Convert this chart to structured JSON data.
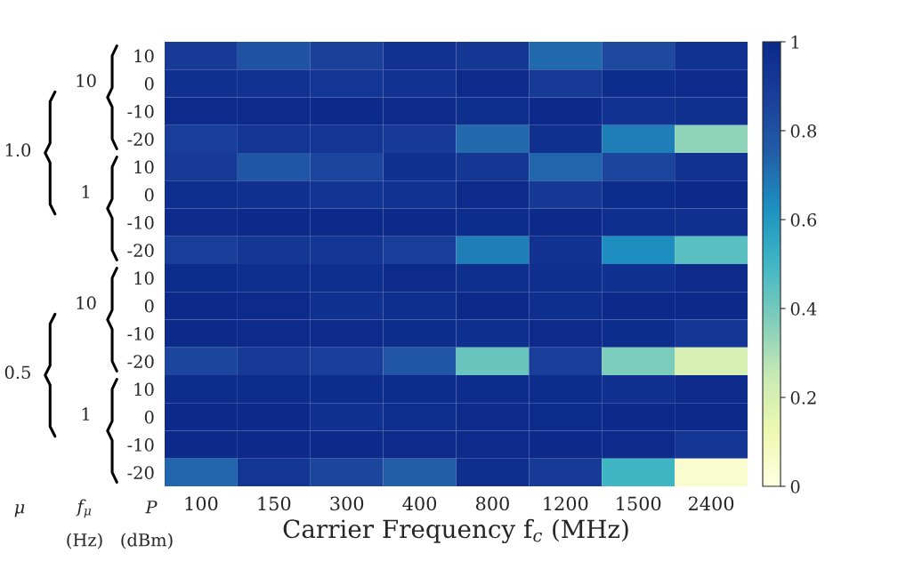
{
  "chart_data": {
    "type": "heatmap",
    "xlabel": "Carrier Frequency f$_{c}$ (MHz)",
    "categories": [
      "100",
      "150",
      "300",
      "400",
      "800",
      "1200",
      "1500",
      "2400"
    ],
    "y_categories": [
      "10",
      "0",
      "-10",
      "-20",
      "10",
      "0",
      "-10",
      "-20",
      "10",
      "0",
      "-10",
      "-20",
      "10",
      "0",
      "-10",
      "-20"
    ],
    "cells": [
      [
        0.9,
        0.8,
        0.87,
        0.95,
        0.92,
        0.72,
        0.83,
        0.95
      ],
      [
        0.96,
        0.95,
        0.93,
        0.95,
        0.99,
        0.9,
        0.98,
        0.99
      ],
      [
        0.99,
        0.99,
        1.0,
        0.99,
        0.97,
        1.0,
        0.95,
        0.96
      ],
      [
        0.88,
        0.93,
        0.93,
        0.9,
        0.72,
        0.96,
        0.67,
        0.35
      ],
      [
        0.9,
        0.78,
        0.85,
        0.96,
        0.92,
        0.73,
        0.85,
        0.95
      ],
      [
        0.97,
        0.96,
        0.94,
        0.95,
        0.99,
        0.91,
        0.98,
        1.0
      ],
      [
        0.99,
        1.0,
        1.0,
        1.0,
        0.98,
        1.0,
        0.97,
        0.96
      ],
      [
        0.88,
        0.92,
        0.93,
        0.88,
        0.67,
        0.95,
        0.63,
        0.45
      ],
      [
        0.98,
        0.97,
        0.97,
        0.99,
        0.97,
        0.97,
        0.96,
        0.99
      ],
      [
        1.0,
        0.99,
        0.96,
        0.97,
        1.0,
        0.97,
        1.0,
        1.0
      ],
      [
        1.0,
        0.99,
        0.99,
        0.98,
        0.97,
        0.99,
        0.98,
        0.93
      ],
      [
        0.85,
        0.9,
        0.88,
        0.78,
        0.42,
        0.88,
        0.38,
        0.2
      ],
      [
        0.98,
        0.98,
        0.98,
        0.98,
        0.98,
        0.98,
        0.96,
        0.99
      ],
      [
        1.0,
        1.0,
        0.96,
        0.97,
        0.99,
        0.98,
        1.0,
        1.0
      ],
      [
        1.0,
        1.0,
        1.0,
        0.99,
        0.99,
        1.0,
        0.99,
        0.93
      ],
      [
        0.73,
        0.93,
        0.85,
        0.75,
        0.97,
        0.9,
        0.5,
        0.05
      ]
    ],
    "clim": [
      0,
      1
    ],
    "cticks": [
      0,
      0.2,
      0.4,
      0.6,
      0.8,
      1
    ],
    "annotations": [
      "1.0",
      "10",
      "1",
      "0.5",
      "10",
      "1",
      "μ",
      "f$_{μ}$",
      "P",
      "(Hz)",
      "(dBm)"
    ]
  }
}
